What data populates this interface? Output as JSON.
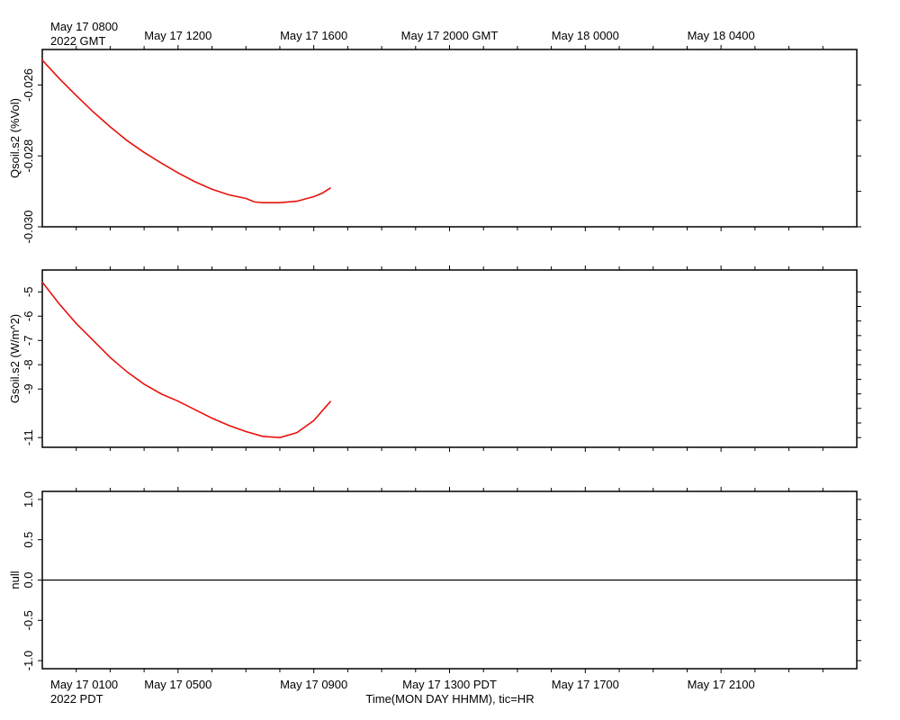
{
  "top_labels": {
    "date": "May 17 0800",
    "year_zone": "2022 GMT"
  },
  "bottom_labels": {
    "date": "May 17 0100",
    "year_zone": "2022 PDT"
  },
  "x_axis_label": "Time(MON DAY HHMM), tic=HR",
  "line_color": "#e8120c",
  "chart_data": [
    {
      "type": "line",
      "ylabel": "Qsoil.s2 (%Vol)",
      "ylim": [
        -0.03,
        -0.025
      ],
      "yticks": [
        -0.026,
        -0.028,
        -0.03
      ],
      "ytick_labels": [
        "-0.026",
        "-0.028",
        "-0.030"
      ],
      "x_hours": [
        0,
        0.5,
        1,
        1.5,
        2,
        2.5,
        3,
        3.5,
        4,
        4.5,
        5,
        5.5,
        6,
        6.25,
        6.5,
        7,
        7.5,
        8,
        8.25,
        8.5
      ],
      "series": [
        {
          "values": [
            -0.0253,
            -0.02582,
            -0.0263,
            -0.02676,
            -0.02718,
            -0.02757,
            -0.0279,
            -0.0282,
            -0.02848,
            -0.02873,
            -0.02894,
            -0.0291,
            -0.0292,
            -0.0293,
            -0.02932,
            -0.02932,
            -0.02928,
            -0.02915,
            -0.02905,
            -0.0289
          ]
        }
      ]
    },
    {
      "type": "line",
      "ylabel": "Gsoil.s2 (W/m^2)",
      "ylim": [
        -11.4,
        -4.1
      ],
      "yticks": [
        -5,
        -6,
        -7,
        -8,
        -9,
        -11
      ],
      "ytick_labels": [
        "-5",
        "-6",
        "-7",
        "-8",
        "-9",
        "-11"
      ],
      "x_hours": [
        0,
        0.5,
        1,
        1.5,
        2,
        2.5,
        3,
        3.5,
        4,
        4.5,
        5,
        5.5,
        6,
        6.5,
        7,
        7.5,
        8,
        8.5
      ],
      "series": [
        {
          "values": [
            -4.6,
            -5.5,
            -6.3,
            -7.0,
            -7.7,
            -8.3,
            -8.8,
            -9.2,
            -9.5,
            -9.85,
            -10.2,
            -10.5,
            -10.75,
            -10.95,
            -11.0,
            -10.8,
            -10.3,
            -9.5
          ]
        }
      ]
    },
    {
      "type": "line",
      "ylabel": "null",
      "ylim": [
        -1.1,
        1.1
      ],
      "yticks": [
        1.0,
        0.5,
        0.0,
        -0.5,
        -1.0
      ],
      "ytick_labels": [
        "1.0",
        "0.5",
        "0.0",
        "-0.5",
        "-1.0"
      ],
      "series": [
        {
          "values": [
            0.0,
            0.0
          ]
        }
      ]
    }
  ],
  "x_axis": {
    "hours_range": [
      0,
      24
    ],
    "top_ticks": [
      {
        "hour": 4,
        "label": "May 17 1200"
      },
      {
        "hour": 8,
        "label": "May 17 1600"
      },
      {
        "hour": 12,
        "label": "May 17 2000 GMT"
      },
      {
        "hour": 16,
        "label": "May 18 0000"
      },
      {
        "hour": 20,
        "label": "May 18 0400"
      }
    ],
    "bottom_ticks": [
      {
        "hour": 4,
        "label": "May 17 0500"
      },
      {
        "hour": 8,
        "label": "May 17 0900"
      },
      {
        "hour": 12,
        "label": "May 17 1300 PDT"
      },
      {
        "hour": 16,
        "label": "May 17 1700"
      },
      {
        "hour": 20,
        "label": "May 17 2100"
      }
    ]
  }
}
